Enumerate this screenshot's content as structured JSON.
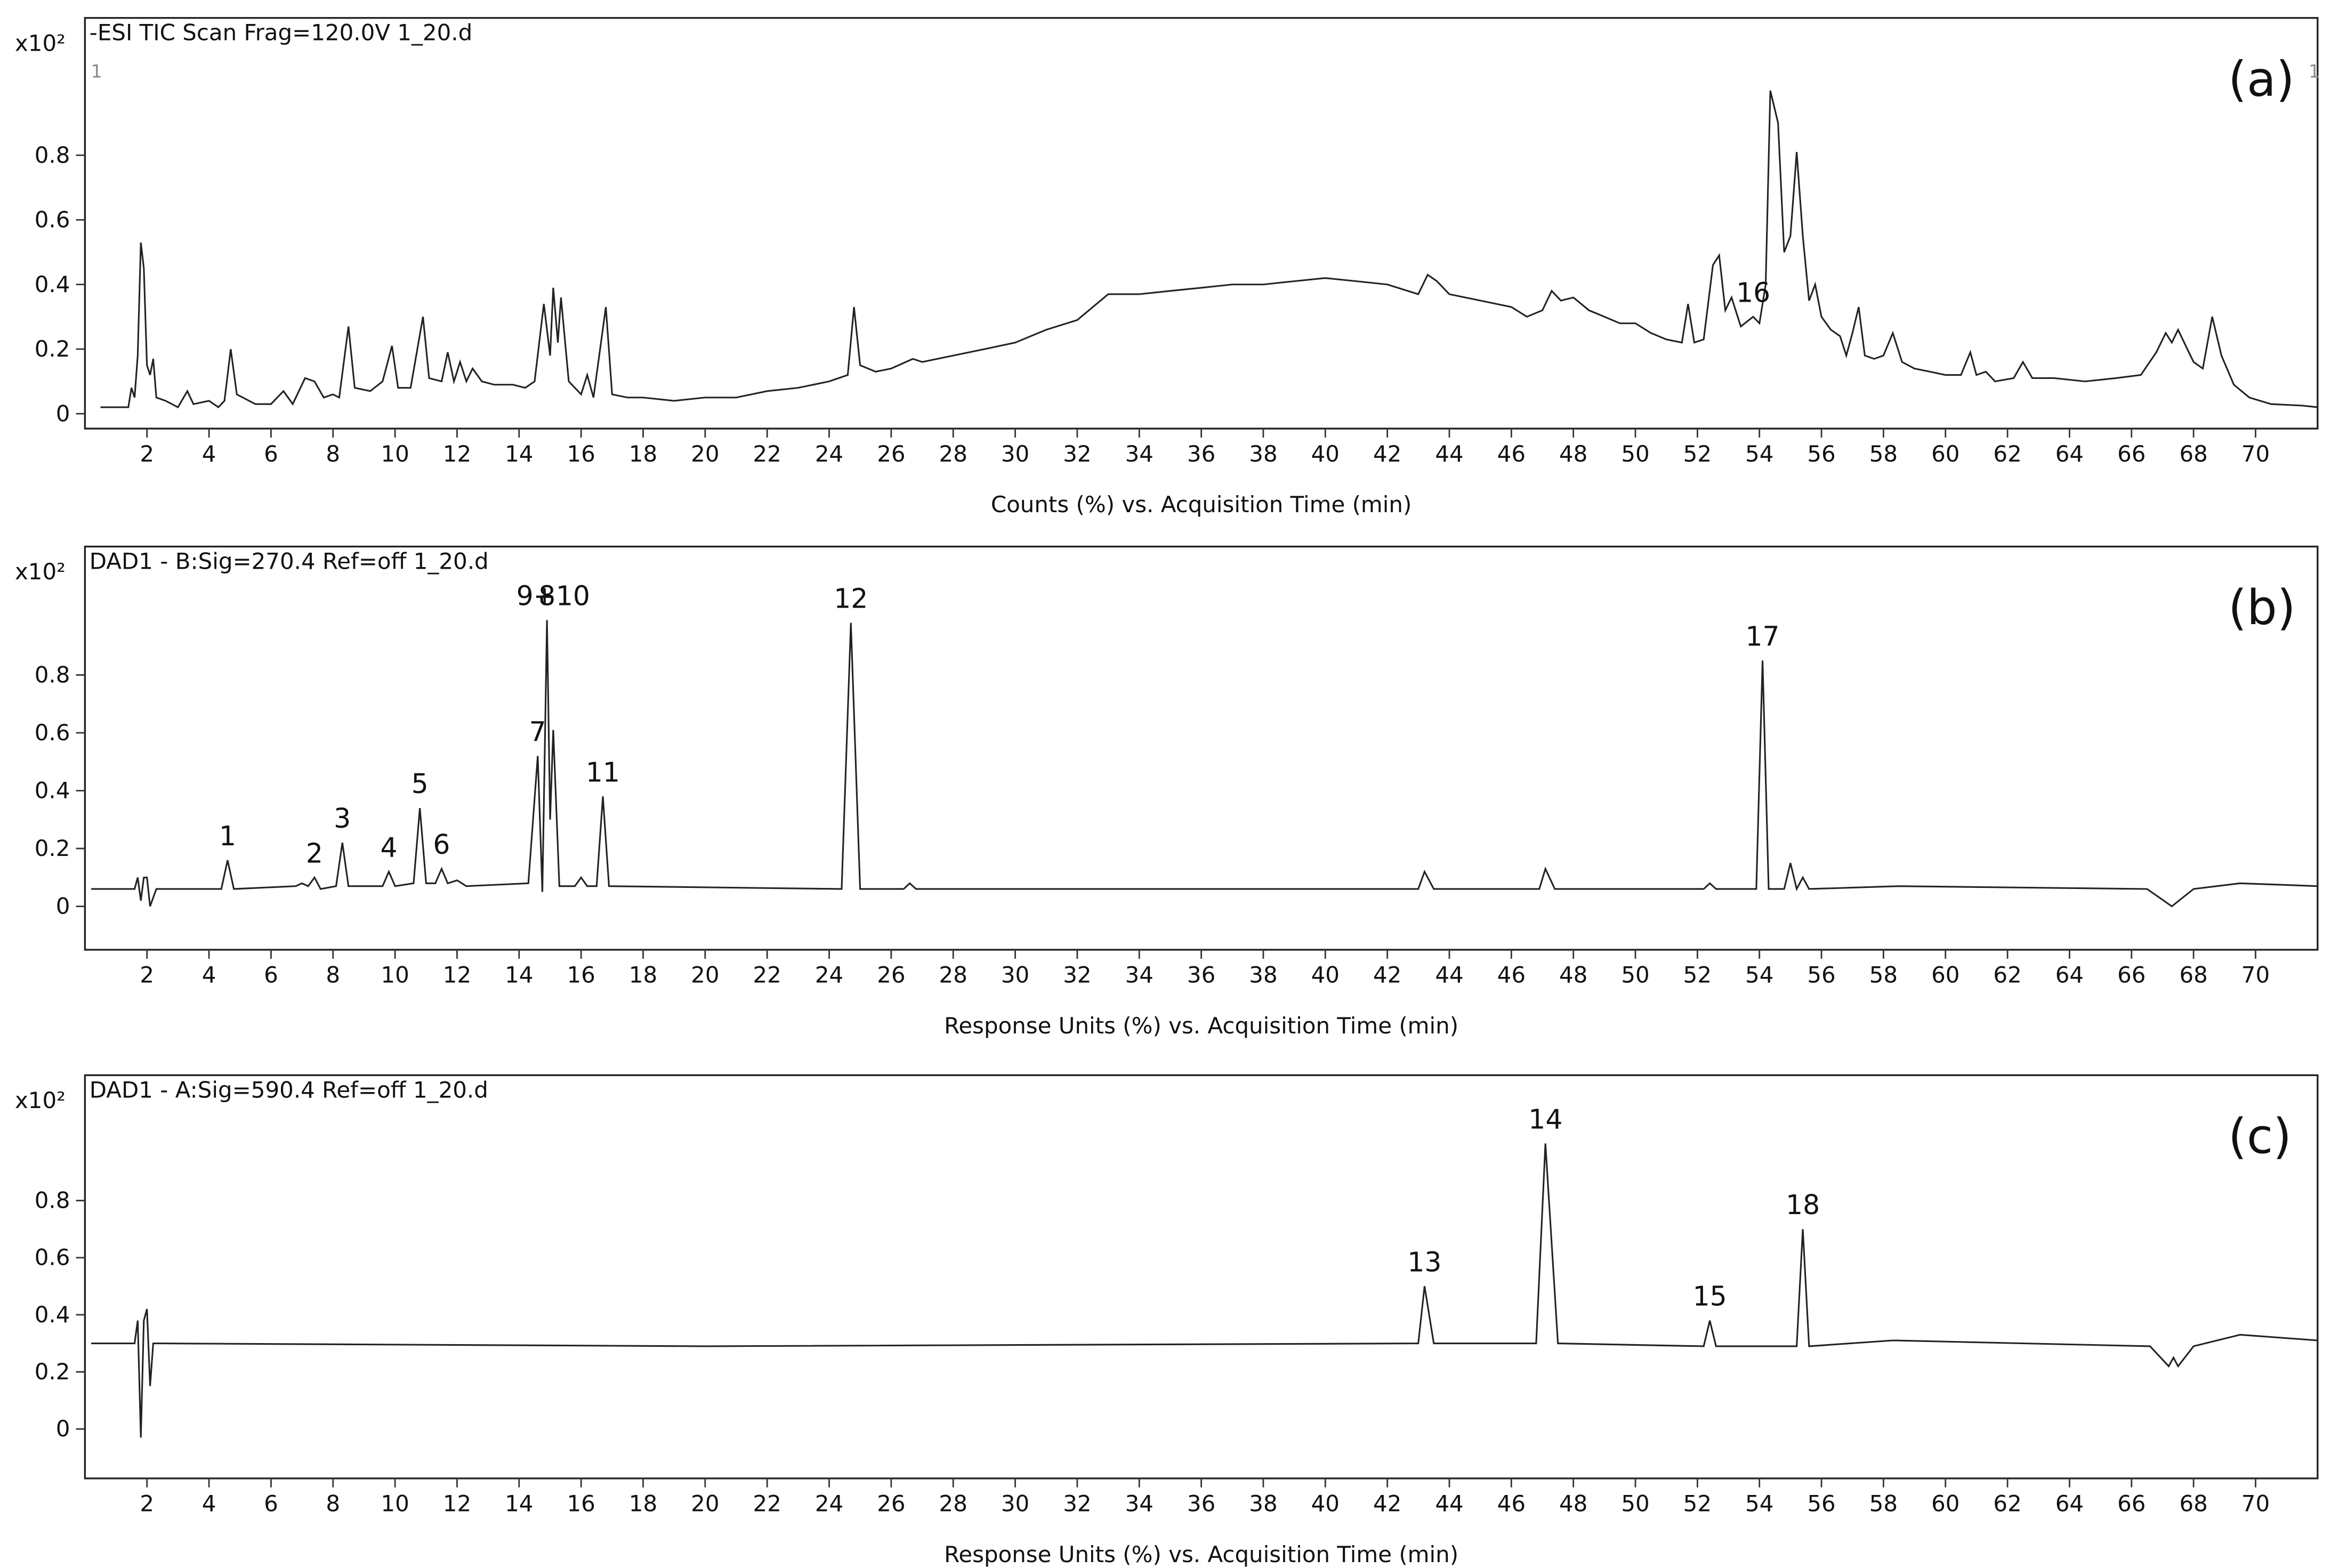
{
  "chart_data": [
    {
      "type": "line",
      "title": "-ESI TIC Scan Frag=120.0V 1_20.d",
      "panel_label": "(a)",
      "y_unit": "x10²",
      "corner_labels": [
        "1",
        "1"
      ],
      "x_label": "Counts (%) vs. Acquisition Time (min)",
      "color": "#222222",
      "xlim": [
        0,
        72
      ],
      "ylim": [
        -0.046,
        1.225
      ],
      "xticks": [
        2,
        4,
        6,
        8,
        10,
        12,
        14,
        16,
        18,
        20,
        22,
        24,
        26,
        28,
        30,
        32,
        34,
        36,
        38,
        40,
        42,
        44,
        46,
        48,
        50,
        52,
        54,
        56,
        58,
        60,
        62,
        64,
        66,
        68,
        70
      ],
      "yticks": [
        0,
        0.2,
        0.4,
        0.6,
        0.8
      ],
      "x": [
        0.5,
        1.4,
        1.5,
        1.6,
        1.7,
        1.8,
        1.9,
        2.0,
        2.1,
        2.2,
        2.3,
        2.6,
        3.0,
        3.3,
        3.5,
        4.0,
        4.3,
        4.5,
        4.7,
        4.9,
        5.5,
        6.0,
        6.4,
        6.7,
        7.1,
        7.4,
        7.7,
        8.0,
        8.2,
        8.5,
        8.7,
        9.2,
        9.6,
        9.9,
        10.1,
        10.5,
        10.9,
        11.1,
        11.5,
        11.7,
        11.9,
        12.1,
        12.3,
        12.5,
        12.8,
        13.2,
        13.8,
        14.2,
        14.5,
        14.8,
        15.0,
        15.1,
        15.25,
        15.35,
        15.6,
        16.0,
        16.2,
        16.4,
        16.8,
        17.0,
        17.5,
        18,
        19,
        20,
        21,
        22,
        23,
        24,
        24.6,
        24.8,
        25.0,
        25.5,
        26,
        26.7,
        27,
        28,
        29,
        30,
        31,
        32,
        33,
        34,
        35,
        36,
        37,
        38,
        39,
        40,
        41,
        42,
        43,
        43.3,
        43.6,
        44,
        45,
        46,
        46.5,
        47,
        47.3,
        47.6,
        48,
        48.5,
        49,
        49.5,
        50,
        50.5,
        51,
        51.5,
        51.7,
        51.9,
        52.2,
        52.5,
        52.7,
        52.9,
        53.1,
        53.4,
        53.8,
        54.0,
        54.2,
        54.35,
        54.6,
        54.8,
        55.0,
        55.2,
        55.4,
        55.6,
        55.8,
        56.0,
        56.3,
        56.6,
        56.8,
        57.0,
        57.2,
        57.4,
        57.7,
        58.0,
        58.3,
        58.6,
        59,
        59.5,
        60,
        60.5,
        60.8,
        61.0,
        61.3,
        61.6,
        62.2,
        62.5,
        62.8,
        63.5,
        64.5,
        65.5,
        66.3,
        66.8,
        67.1,
        67.3,
        67.5,
        67.8,
        68.0,
        68.3,
        68.6,
        68.9,
        69.3,
        69.8,
        70.5,
        71.5,
        72
      ],
      "values": [
        0.02,
        0.02,
        0.08,
        0.05,
        0.18,
        0.53,
        0.45,
        0.15,
        0.12,
        0.17,
        0.05,
        0.04,
        0.02,
        0.07,
        0.03,
        0.04,
        0.02,
        0.04,
        0.2,
        0.06,
        0.03,
        0.03,
        0.07,
        0.03,
        0.11,
        0.1,
        0.05,
        0.06,
        0.05,
        0.27,
        0.08,
        0.07,
        0.1,
        0.21,
        0.08,
        0.08,
        0.3,
        0.11,
        0.1,
        0.19,
        0.1,
        0.16,
        0.1,
        0.14,
        0.1,
        0.09,
        0.09,
        0.08,
        0.1,
        0.34,
        0.18,
        0.39,
        0.22,
        0.36,
        0.1,
        0.06,
        0.12,
        0.05,
        0.33,
        0.06,
        0.05,
        0.05,
        0.04,
        0.05,
        0.05,
        0.07,
        0.08,
        0.1,
        0.12,
        0.33,
        0.15,
        0.13,
        0.14,
        0.17,
        0.16,
        0.18,
        0.2,
        0.22,
        0.26,
        0.29,
        0.37,
        0.37,
        0.38,
        0.39,
        0.4,
        0.4,
        0.41,
        0.42,
        0.41,
        0.4,
        0.37,
        0.43,
        0.41,
        0.37,
        0.35,
        0.33,
        0.3,
        0.32,
        0.38,
        0.35,
        0.36,
        0.32,
        0.3,
        0.28,
        0.28,
        0.25,
        0.23,
        0.22,
        0.34,
        0.22,
        0.23,
        0.46,
        0.49,
        0.32,
        0.36,
        0.27,
        0.3,
        0.28,
        0.4,
        1.0,
        0.9,
        0.5,
        0.55,
        0.81,
        0.55,
        0.35,
        0.4,
        0.3,
        0.26,
        0.24,
        0.18,
        0.25,
        0.33,
        0.18,
        0.17,
        0.18,
        0.25,
        0.16,
        0.14,
        0.13,
        0.12,
        0.12,
        0.19,
        0.12,
        0.13,
        0.1,
        0.11,
        0.16,
        0.11,
        0.11,
        0.1,
        0.11,
        0.12,
        0.19,
        0.25,
        0.22,
        0.26,
        0.2,
        0.16,
        0.14,
        0.3,
        0.18,
        0.09,
        0.05,
        0.03,
        0.025,
        0.02
      ],
      "annotations": [
        {
          "text": "16",
          "x": 53.8
        }
      ]
    },
    {
      "type": "line",
      "title": "DAD1 - B:Sig=270.4  Ref=off 1_20.d",
      "panel_label": "(b)",
      "y_unit": "x10²",
      "x_label": "Response Units (%) vs. Acquisition Time (min)",
      "color": "#222222",
      "xlim": [
        0,
        72
      ],
      "ylim": [
        -0.15,
        1.244
      ],
      "xticks": [
        2,
        4,
        6,
        8,
        10,
        12,
        14,
        16,
        18,
        20,
        22,
        24,
        26,
        28,
        30,
        32,
        34,
        36,
        38,
        40,
        42,
        44,
        46,
        48,
        50,
        52,
        54,
        56,
        58,
        60,
        62,
        64,
        66,
        68,
        70
      ],
      "yticks": [
        0,
        0.2,
        0.4,
        0.6,
        0.8
      ],
      "x": [
        0.2,
        1.6,
        1.7,
        1.8,
        1.9,
        2.0,
        2.1,
        2.3,
        4.4,
        4.6,
        4.8,
        6.8,
        7.0,
        7.2,
        7.4,
        7.6,
        8.1,
        8.3,
        8.5,
        9.6,
        9.8,
        10.0,
        10.6,
        10.8,
        11.0,
        11.3,
        11.5,
        11.7,
        12.0,
        12.3,
        14.3,
        14.6,
        14.75,
        14.9,
        15.0,
        15.1,
        15.3,
        15.8,
        16.0,
        16.2,
        16.5,
        16.7,
        16.9,
        24.4,
        24.7,
        25.0,
        26.4,
        26.6,
        26.8,
        43.0,
        43.2,
        43.5,
        46.9,
        47.1,
        47.4,
        52.2,
        52.4,
        52.6,
        53.9,
        54.1,
        54.3,
        54.8,
        55.0,
        55.2,
        55.4,
        55.6,
        58.5,
        66.5,
        67.3,
        68.0,
        69.5,
        72
      ],
      "values": [
        0.06,
        0.06,
        0.1,
        0.02,
        0.1,
        0.1,
        0.0,
        0.06,
        0.06,
        0.16,
        0.06,
        0.07,
        0.08,
        0.07,
        0.1,
        0.06,
        0.07,
        0.22,
        0.07,
        0.07,
        0.12,
        0.07,
        0.08,
        0.34,
        0.08,
        0.08,
        0.13,
        0.08,
        0.09,
        0.07,
        0.08,
        0.52,
        0.05,
        0.99,
        0.3,
        0.61,
        0.07,
        0.07,
        0.1,
        0.07,
        0.07,
        0.38,
        0.07,
        0.06,
        0.98,
        0.06,
        0.06,
        0.08,
        0.06,
        0.06,
        0.12,
        0.06,
        0.06,
        0.13,
        0.06,
        0.06,
        0.08,
        0.06,
        0.06,
        0.85,
        0.06,
        0.06,
        0.15,
        0.06,
        0.1,
        0.06,
        0.07,
        0.06,
        0.0,
        0.06,
        0.08,
        0.07
      ],
      "annotations": [
        {
          "text": "1",
          "x": 4.6
        },
        {
          "text": "2",
          "x": 7.4
        },
        {
          "text": "3",
          "x": 8.3
        },
        {
          "text": "4",
          "x": 9.8
        },
        {
          "text": "5",
          "x": 10.8
        },
        {
          "text": "6",
          "x": 11.5
        },
        {
          "text": "7",
          "x": 14.6
        },
        {
          "text": "8",
          "x": 14.9
        },
        {
          "text": "9+10",
          "x": 15.1
        },
        {
          "text": "11",
          "x": 16.7
        },
        {
          "text": "12",
          "x": 24.7
        },
        {
          "text": "17",
          "x": 54.1
        }
      ]
    },
    {
      "type": "line",
      "title": "DAD1 - A:Sig=590.4  Ref=off 1_20.d",
      "panel_label": "(c)",
      "y_unit": "x10²",
      "x_label": "Response Units (%) vs. Acquisition Time (min)",
      "color": "#222222",
      "xlim": [
        0,
        72
      ],
      "ylim": [
        -0.173,
        1.239
      ],
      "xticks": [
        2,
        4,
        6,
        8,
        10,
        12,
        14,
        16,
        18,
        20,
        22,
        24,
        26,
        28,
        30,
        32,
        34,
        36,
        38,
        40,
        42,
        44,
        46,
        48,
        50,
        52,
        54,
        56,
        58,
        60,
        62,
        64,
        66,
        68,
        70
      ],
      "yticks": [
        0,
        0.2,
        0.4,
        0.6,
        0.8
      ],
      "x": [
        0.2,
        1.6,
        1.7,
        1.8,
        1.9,
        2.0,
        2.1,
        2.2,
        2.4,
        20,
        43.0,
        43.2,
        43.5,
        46.8,
        47.1,
        47.5,
        52.2,
        52.4,
        52.6,
        55.2,
        55.4,
        55.6,
        58.3,
        66.6,
        67.2,
        67.35,
        67.5,
        68.0,
        69.5,
        72
      ],
      "values": [
        0.3,
        0.3,
        0.38,
        -0.03,
        0.38,
        0.42,
        0.15,
        0.3,
        0.3,
        0.29,
        0.3,
        0.5,
        0.3,
        0.3,
        1.0,
        0.3,
        0.29,
        0.38,
        0.29,
        0.29,
        0.7,
        0.29,
        0.31,
        0.29,
        0.22,
        0.25,
        0.22,
        0.29,
        0.33,
        0.31
      ],
      "annotations": [
        {
          "text": "13",
          "x": 43.2
        },
        {
          "text": "14",
          "x": 47.1
        },
        {
          "text": "15",
          "x": 52.4
        },
        {
          "text": "18",
          "x": 55.4
        }
      ]
    }
  ]
}
